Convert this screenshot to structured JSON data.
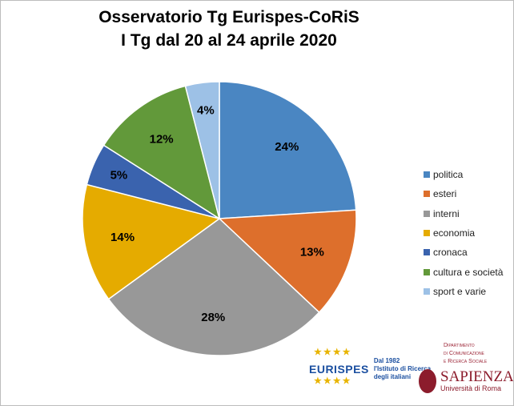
{
  "chart_data": {
    "type": "pie",
    "title": [
      "Osservatorio Tg Eurispes-CoRiS",
      "I Tg dal 20 al 24 aprile 2020"
    ],
    "categories": [
      "politica",
      "esteri",
      "interni",
      "economia",
      "cronaca",
      "cultura e società",
      "sport e varie"
    ],
    "values": [
      24,
      13,
      28,
      14,
      5,
      12,
      4
    ],
    "labels": [
      "24%",
      "13%",
      "28%",
      "14%",
      "5%",
      "12%",
      "4%"
    ],
    "colors": [
      "#4a86c2",
      "#dd6f2c",
      "#989898",
      "#e5ab00",
      "#3a63ae",
      "#62993a",
      "#9dc1e6"
    ],
    "legend": "right",
    "start": "12 o'clock, clockwise"
  },
  "logos": {
    "eurispes": {
      "name": "EURISPES",
      "tagline": [
        "Dal 1982",
        "l'Istituto di Ricerca",
        "degli italiani"
      ]
    },
    "sapienza": {
      "department": [
        "Dipartimento",
        "di Comunicazione",
        "e Ricerca Sociale"
      ],
      "name": "SAPIENZA",
      "sub": "Università di Roma"
    }
  }
}
